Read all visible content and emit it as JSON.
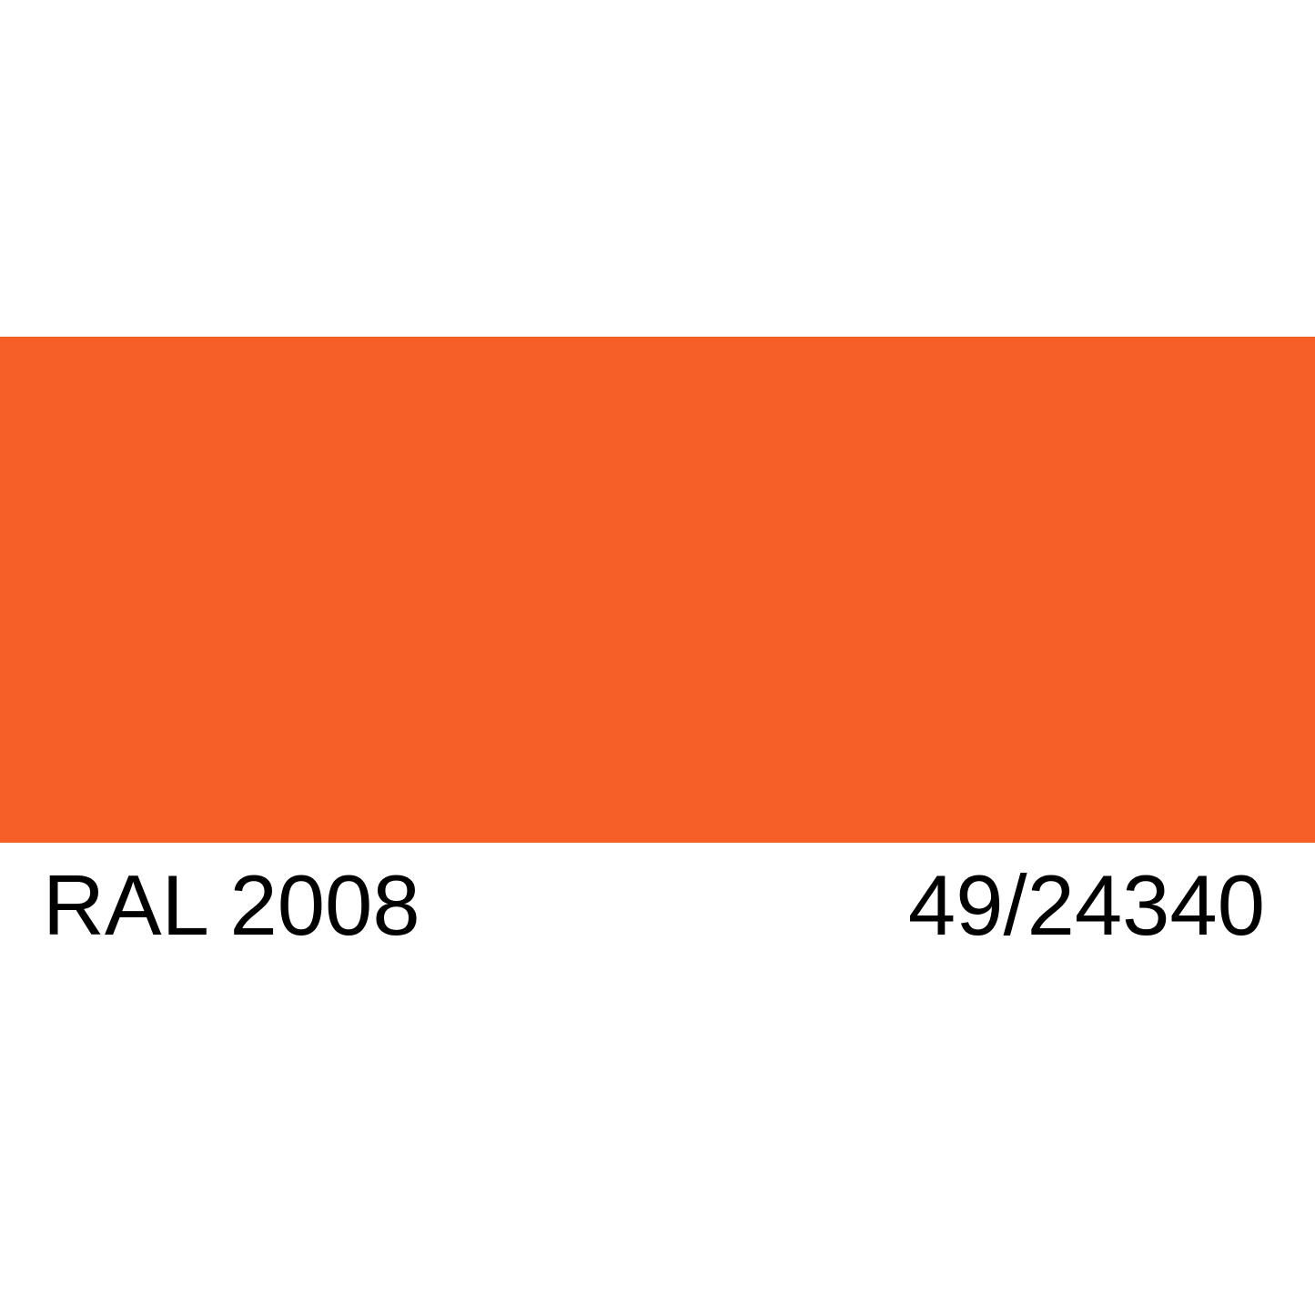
{
  "swatch": {
    "color": "#F65F28"
  },
  "labels": {
    "ral_code": "RAL 2008",
    "product_code": "49/24340"
  }
}
